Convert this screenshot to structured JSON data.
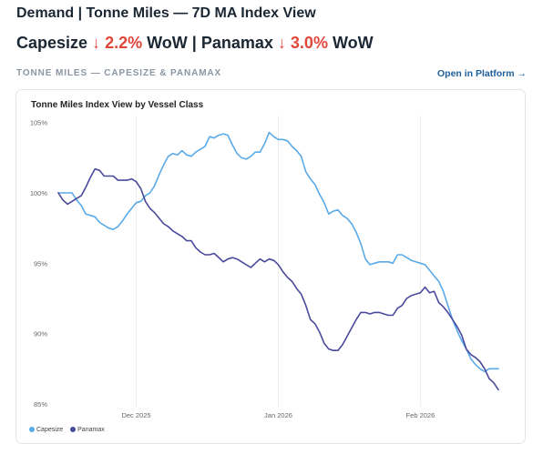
{
  "header": {
    "title": "Demand | Tonne Miles — 7D MA Index View",
    "capesize_label": "Capesize",
    "capesize_change": "↓ 2.2%",
    "wow_1": "WoW",
    "separator": "|",
    "panamax_label": "Panamax",
    "panamax_change": "↓ 3.0%",
    "wow_2": "WoW"
  },
  "section": {
    "label": "TONNE MILES — CAPESIZE & PANAMAX",
    "link": "Open in Platform →"
  },
  "colors": {
    "capesize": "#5aaae8",
    "panamax": "#4a4a9c",
    "down": "#e0463a"
  },
  "chart_data": {
    "type": "line",
    "title": "Tonne Miles Index View by Vessel Class",
    "xlabel": "",
    "ylabel": "",
    "ylim": [
      84.8,
      105.5
    ],
    "y_ticks": [
      85,
      90,
      95,
      100,
      105
    ],
    "y_tick_labels": [
      "85%",
      "90%",
      "95%",
      "100%",
      "105%"
    ],
    "x_ticks": [
      {
        "x": "2025-12-01",
        "label": "Dec 2025"
      },
      {
        "x": "2026-01-01",
        "label": "Jan 2026"
      },
      {
        "x": "2026-02-01",
        "label": "Feb 2026"
      }
    ],
    "xlim": [
      "2025-11-14",
      "2026-02-19"
    ],
    "grid": "vertical",
    "legend_position": "bottom-left",
    "x": [
      "2025-11-14",
      "2025-11-15",
      "2025-11-16",
      "2025-11-17",
      "2025-11-18",
      "2025-11-19",
      "2025-11-20",
      "2025-11-21",
      "2025-11-22",
      "2025-11-23",
      "2025-11-24",
      "2025-11-25",
      "2025-11-26",
      "2025-11-27",
      "2025-11-28",
      "2025-11-29",
      "2025-11-30",
      "2025-12-01",
      "2025-12-02",
      "2025-12-03",
      "2025-12-04",
      "2025-12-05",
      "2025-12-06",
      "2025-12-07",
      "2025-12-08",
      "2025-12-09",
      "2025-12-10",
      "2025-12-11",
      "2025-12-12",
      "2025-12-13",
      "2025-12-14",
      "2025-12-15",
      "2025-12-16",
      "2025-12-17",
      "2025-12-18",
      "2025-12-19",
      "2025-12-20",
      "2025-12-21",
      "2025-12-22",
      "2025-12-23",
      "2025-12-24",
      "2025-12-25",
      "2025-12-26",
      "2025-12-27",
      "2025-12-28",
      "2025-12-29",
      "2025-12-30",
      "2025-12-31",
      "2026-01-01",
      "2026-01-02",
      "2026-01-03",
      "2026-01-04",
      "2026-01-05",
      "2026-01-06",
      "2026-01-07",
      "2026-01-08",
      "2026-01-09",
      "2026-01-10",
      "2026-01-11",
      "2026-01-12",
      "2026-01-13",
      "2026-01-14",
      "2026-01-15",
      "2026-01-16",
      "2026-01-17",
      "2026-01-18",
      "2026-01-19",
      "2026-01-20",
      "2026-01-21",
      "2026-01-22",
      "2026-01-23",
      "2026-01-24",
      "2026-01-25",
      "2026-01-26",
      "2026-01-27",
      "2026-01-28",
      "2026-01-29",
      "2026-01-30",
      "2026-01-31",
      "2026-02-01",
      "2026-02-02",
      "2026-02-03",
      "2026-02-04",
      "2026-02-05",
      "2026-02-06",
      "2026-02-07",
      "2026-02-08",
      "2026-02-09",
      "2026-02-10",
      "2026-02-11",
      "2026-02-12",
      "2026-02-13",
      "2026-02-14",
      "2026-02-15",
      "2026-02-16",
      "2026-02-17",
      "2026-02-18"
    ],
    "series": [
      {
        "name": "Capesize",
        "values": [
          100.0,
          100.0,
          100.0,
          100.0,
          99.5,
          99.1,
          98.5,
          98.4,
          98.3,
          97.9,
          97.7,
          97.5,
          97.4,
          97.6,
          98.0,
          98.5,
          98.9,
          99.3,
          99.4,
          99.8,
          100.0,
          100.5,
          101.3,
          102.0,
          102.6,
          102.8,
          102.7,
          103.0,
          102.7,
          102.6,
          102.9,
          103.1,
          103.3,
          104.0,
          103.9,
          104.1,
          104.2,
          104.1,
          103.4,
          102.8,
          102.5,
          102.4,
          102.6,
          102.9,
          102.9,
          103.5,
          104.3,
          104.0,
          103.8,
          103.8,
          103.7,
          103.3,
          103.0,
          102.6,
          101.5,
          101.0,
          100.6,
          99.9,
          99.3,
          98.5,
          98.7,
          98.8,
          98.4,
          98.2,
          97.8,
          97.2,
          96.4,
          95.3,
          94.9,
          95.0,
          95.1,
          95.1,
          95.1,
          95.0,
          95.6,
          95.6,
          95.4,
          95.2,
          95.1,
          95.0,
          94.9,
          94.5,
          94.1,
          93.7,
          93.0,
          92.0,
          91.0,
          90.2,
          89.5,
          88.9,
          88.2,
          87.8,
          87.5,
          87.3,
          87.5,
          87.5,
          87.5
        ]
      },
      {
        "name": "Panamax",
        "values": [
          100.0,
          99.5,
          99.2,
          99.4,
          99.6,
          99.8,
          100.4,
          101.1,
          101.7,
          101.6,
          101.2,
          101.2,
          101.2,
          100.9,
          100.9,
          100.9,
          101.0,
          100.8,
          100.3,
          99.4,
          98.9,
          98.6,
          98.2,
          97.8,
          97.6,
          97.3,
          97.1,
          96.9,
          96.6,
          96.6,
          96.1,
          95.8,
          95.6,
          95.6,
          95.7,
          95.4,
          95.1,
          95.3,
          95.4,
          95.3,
          95.1,
          94.9,
          94.7,
          95.0,
          95.3,
          95.1,
          95.3,
          95.2,
          94.9,
          94.4,
          94.0,
          93.7,
          93.2,
          92.8,
          92.0,
          91.0,
          90.7,
          90.1,
          89.3,
          88.9,
          88.8,
          88.8,
          89.2,
          89.8,
          90.4,
          91.0,
          91.5,
          91.5,
          91.4,
          91.5,
          91.5,
          91.4,
          91.3,
          91.3,
          91.8,
          92.0,
          92.5,
          92.7,
          92.8,
          92.9,
          93.3,
          92.9,
          93.0,
          92.2,
          91.9,
          91.5,
          91.0,
          90.5,
          89.9,
          88.9,
          88.5,
          88.3,
          88.0,
          87.5,
          86.8,
          86.5,
          86.0
        ]
      }
    ]
  }
}
